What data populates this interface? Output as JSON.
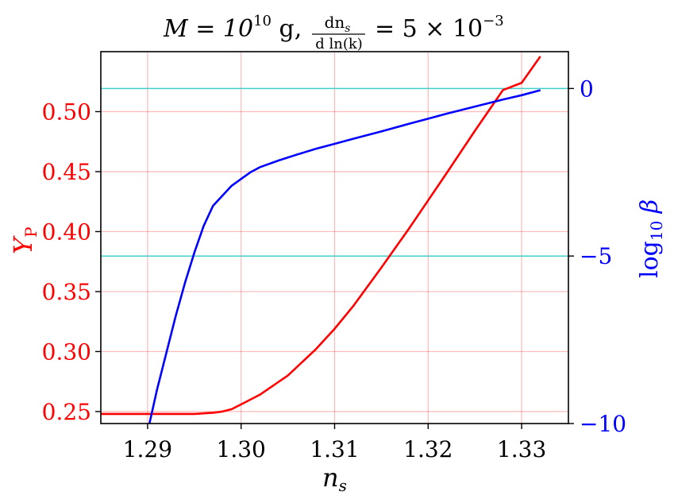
{
  "chart_data": {
    "type": "line",
    "title": {
      "main": "M = 10",
      "main_sup": "10",
      "unit": " g,",
      "frac_num": "dn",
      "frac_num_sub": "s",
      "frac_den": "d ln(k)",
      "rhs": "= 5 × 10",
      "rhs_sup": "−3"
    },
    "xlabel": {
      "text": "n",
      "sub": "s"
    },
    "ylabel_left": {
      "text": "Y",
      "sub": "P"
    },
    "ylabel_right": {
      "text": "log",
      "sub": "10",
      "tail": " β"
    },
    "xlim": [
      1.285,
      1.335
    ],
    "ylim_left": [
      0.24,
      0.55
    ],
    "ylim_right": [
      -10,
      1.1
    ],
    "x_ticks": [
      1.29,
      1.3,
      1.31,
      1.32,
      1.33
    ],
    "x_tick_labels": [
      "1.29",
      "1.30",
      "1.31",
      "1.32",
      "1.33"
    ],
    "y_left_ticks": [
      0.25,
      0.3,
      0.35,
      0.4,
      0.45,
      0.5
    ],
    "y_left_tick_labels": [
      "0.25",
      "0.30",
      "0.35",
      "0.40",
      "0.45",
      "0.50"
    ],
    "y_right_ticks": [
      -10,
      -5,
      0
    ],
    "y_right_tick_labels": [
      "−10",
      "−5",
      "0"
    ],
    "grid": true,
    "reference_lines_right": [
      0,
      -5
    ],
    "series": [
      {
        "axis": "left",
        "color": "#ff0000",
        "x": [
          1.285,
          1.29,
          1.295,
          1.297,
          1.298,
          1.299,
          1.3,
          1.302,
          1.305,
          1.308,
          1.31,
          1.312,
          1.315,
          1.318,
          1.32,
          1.322,
          1.325,
          1.328,
          1.33,
          1.331,
          1.332
        ],
        "y": [
          0.248,
          0.248,
          0.248,
          0.249,
          0.25,
          0.252,
          0.256,
          0.264,
          0.28,
          0.302,
          0.319,
          0.338,
          0.37,
          0.403,
          0.426,
          0.449,
          0.484,
          0.518,
          0.524,
          0.535,
          0.546
        ]
      },
      {
        "axis": "right",
        "color": "#0000ff",
        "x": [
          1.2902,
          1.291,
          1.292,
          1.293,
          1.294,
          1.295,
          1.296,
          1.297,
          1.298,
          1.299,
          1.3,
          1.301,
          1.302,
          1.304,
          1.306,
          1.308,
          1.31,
          1.312,
          1.315,
          1.318,
          1.32,
          1.322,
          1.325,
          1.328,
          1.33,
          1.332
        ],
        "y": [
          -10.0,
          -9.0,
          -7.9,
          -6.8,
          -5.8,
          -4.9,
          -4.1,
          -3.5,
          -3.2,
          -2.9,
          -2.7,
          -2.5,
          -2.35,
          -2.15,
          -1.97,
          -1.8,
          -1.65,
          -1.5,
          -1.28,
          -1.05,
          -0.9,
          -0.75,
          -0.54,
          -0.33,
          -0.2,
          -0.05
        ]
      }
    ]
  }
}
